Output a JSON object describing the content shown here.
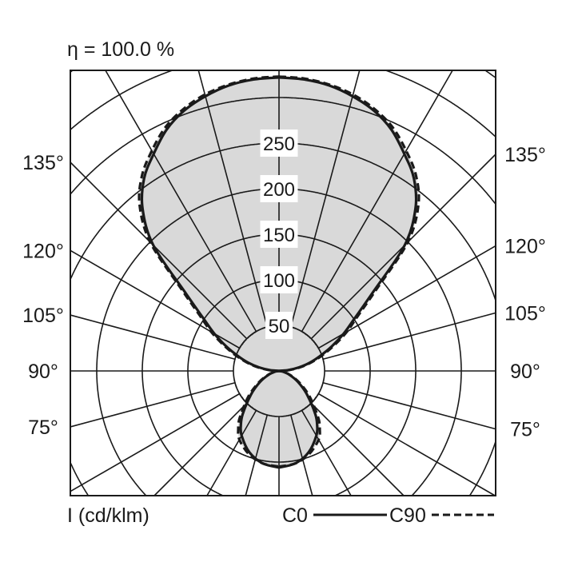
{
  "chart_data": {
    "type": "polar",
    "title": "η = 100.0 %",
    "unit_label": "I (cd/klm)",
    "radial_ticks": [
      "50",
      "100",
      "150",
      "200",
      "250"
    ],
    "radial_tick_values": [
      50,
      100,
      150,
      200,
      250
    ],
    "radial_step": 50,
    "angle_step_deg": 15,
    "angle_labels_left": [
      "135°",
      "120°",
      "105°",
      "90°",
      "75°"
    ],
    "angle_labels_right": [
      "135°",
      "120°",
      "105°",
      "90°",
      "75°"
    ],
    "angle_label_values": [
      135,
      120,
      105,
      90,
      75
    ],
    "grid": true,
    "fill_color": "#d9d9d9",
    "line_color": "#1a1a1a",
    "legend_placement": "bottom-right",
    "angles": [
      0,
      10,
      20,
      30,
      35,
      40,
      50,
      60,
      70,
      80,
      90,
      95,
      100,
      105,
      110,
      115,
      120,
      125,
      130,
      135,
      140,
      145,
      150,
      155,
      160,
      165,
      170,
      175,
      180
    ],
    "series": [
      {
        "name": "C0",
        "style": "solid",
        "values": [
          106,
          103,
          95,
          82,
          73,
          62,
          40,
          24,
          12,
          4,
          0,
          10,
          22,
          35,
          48,
          64,
          82,
          102,
          135,
          195,
          233,
          258,
          275,
          292,
          304,
          312,
          318,
          321,
          322
        ]
      },
      {
        "name": "C90",
        "style": "dashed",
        "values": [
          105,
          103,
          97,
          87,
          78,
          67,
          44,
          26,
          13,
          4,
          0,
          11,
          24,
          37,
          51,
          67,
          86,
          106,
          140,
          200,
          238,
          262,
          279,
          295,
          306,
          314,
          319,
          322,
          323
        ]
      }
    ]
  }
}
